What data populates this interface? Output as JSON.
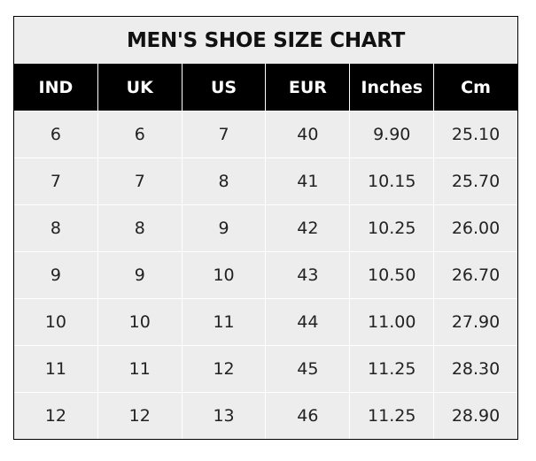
{
  "title": "MEN'S SHOE SIZE CHART",
  "columns": [
    "IND",
    "UK",
    "US",
    "EUR",
    "Inches",
    "Cm"
  ],
  "rows": [
    [
      "6",
      "6",
      "7",
      "40",
      "9.90",
      "25.10"
    ],
    [
      "7",
      "7",
      "8",
      "41",
      "10.15",
      "25.70"
    ],
    [
      "8",
      "8",
      "9",
      "42",
      "10.25",
      "26.00"
    ],
    [
      "9",
      "9",
      "10",
      "43",
      "10.50",
      "26.70"
    ],
    [
      "10",
      "10",
      "11",
      "44",
      "11.00",
      "27.90"
    ],
    [
      "11",
      "11",
      "12",
      "45",
      "11.25",
      "28.30"
    ],
    [
      "12",
      "12",
      "13",
      "46",
      "11.25",
      "28.90"
    ]
  ],
  "colors": {
    "header_bg": "#000000",
    "cell_bg": "#ededed",
    "grid": "#ffffff"
  }
}
